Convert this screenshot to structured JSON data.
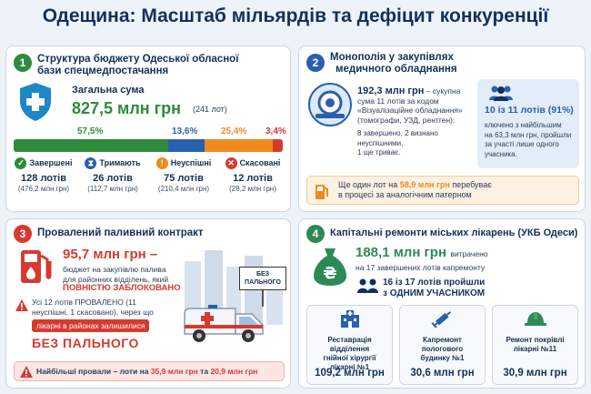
{
  "title": "Одещина: Масштаб мільярдів та дефіцит конкуренції",
  "colors": {
    "green": "#2e8b3c",
    "blue": "#2a5fb0",
    "orange": "#ef8a1f",
    "red": "#d63a2f",
    "navy": "#12305a"
  },
  "budget": {
    "num": "1",
    "title_line1": "Структура бюджету Одеської обласної",
    "title_line2": "бази спецмедпостачання",
    "total_label": "Загальна сума",
    "total_value": "827,5 млн грн",
    "total_lots": "(241 лот)",
    "icon": "medical-shield-icon",
    "bar": [
      {
        "label": "57,5%",
        "value": 57.5,
        "color": "#2e8b3c"
      },
      {
        "label": "13,6%",
        "value": 13.6,
        "color": "#2a5fb0"
      },
      {
        "label": "25,4%",
        "value": 25.4,
        "color": "#ef8a1f"
      },
      {
        "label": "3,4%",
        "value": 3.4,
        "color": "#d63a2f"
      }
    ],
    "stats": [
      {
        "label": "Завершені",
        "icon": "check-icon",
        "count": "128 лотів",
        "sum": "(476,2 млн грн)"
      },
      {
        "label": "Тримають",
        "icon": "hourglass-icon",
        "count": "26 лотів",
        "sum": "(112,7 млн грн)"
      },
      {
        "label": "Неуспішні",
        "icon": "warning-icon",
        "count": "75 лотів",
        "sum": "(210,4 млн грн)"
      },
      {
        "label": "Скасовані",
        "icon": "cross-icon",
        "count": "12 лотів",
        "sum": "(28,2 млн грн)"
      }
    ]
  },
  "monopoly": {
    "num": "2",
    "title_line1": "Монополія у закупівлях",
    "title_line2": "медичного обладнання",
    "icon": "mri-scanner-icon",
    "amount": "192,3 млн грн",
    "desc_lines": [
      "– сукупна",
      "сума 11 лотів за кодом",
      "«Візуалізаційне обладнання»",
      "(томографи, УЗД, рентген):"
    ],
    "status_lines": [
      "8 завершено, 2 визнано неуспішними,",
      "1 ще триває."
    ],
    "side_icon": "people-icon",
    "side_big": "10 із 11 лотів (91%)",
    "side_lines": [
      "ключено з найбільшим",
      "на 63,3 млн грн, пройшли",
      "за участі лише одного",
      "учасника."
    ],
    "note_line1_pre": "Ще один лот на",
    "note_line1_amount": "58,9 млн грн",
    "note_line1_post": "перебуває",
    "note_line2": "в процесі за аналогічним патерном",
    "note_icon": "fuel-pump-icon"
  },
  "fuel": {
    "num": "3",
    "title": "Провалений паливний контракт",
    "icon": "fuel-pump-drop-icon",
    "amount": "95,7 млн грн –",
    "desc_lines": [
      "бюджет на закупівлю палива",
      "для районних відділень, який"
    ],
    "blocked": "ПОВНІСТЮ ЗАБЛОКОВАНО",
    "failed_lines": [
      "Усі 12 лотів ПРОВАЛЕНО (11",
      "неуспішні, 1 скасовано), через що"
    ],
    "hospitals": "лікарні в районах залишилися",
    "no_fuel": "БЕЗ ПАЛЬНОГО",
    "sign": "БЕЗ ПАЛЬНОГО",
    "ambulance_icon": "ambulance-icon",
    "bottom_pre": "Найбільші провали – лоти на",
    "bottom_a": "35,9 млн грн",
    "bottom_mid": "та",
    "bottom_b": "20,9 млн грн"
  },
  "repairs": {
    "num": "4",
    "title": "Капітальні ремонти міських лікарень (УКБ Одеси)",
    "icon": "money-bag-icon",
    "amount": "188,1 млн грн",
    "spent": "витрачено",
    "line2": "на 17 завершених лотів капремонту",
    "lots_line1": "16 із 17 лотів пройшли",
    "lots_line2": "з ОДНИМ УЧАСНИКОМ",
    "cards": [
      {
        "icon": "hospital-icon",
        "lines": [
          "Реставрація відділення",
          "гнійної хірургії",
          "лікарні №1"
        ],
        "amount": "109,2 млн грн"
      },
      {
        "icon": "syringe-icon",
        "lines": [
          "Капремонт пологового",
          "будинку №1"
        ],
        "amount": "30,6 млн грн"
      },
      {
        "icon": "hard-hat-icon",
        "lines": [
          "Ремонт покрівлі",
          "лікарні №11"
        ],
        "amount": "30,9 млн грн"
      }
    ]
  }
}
